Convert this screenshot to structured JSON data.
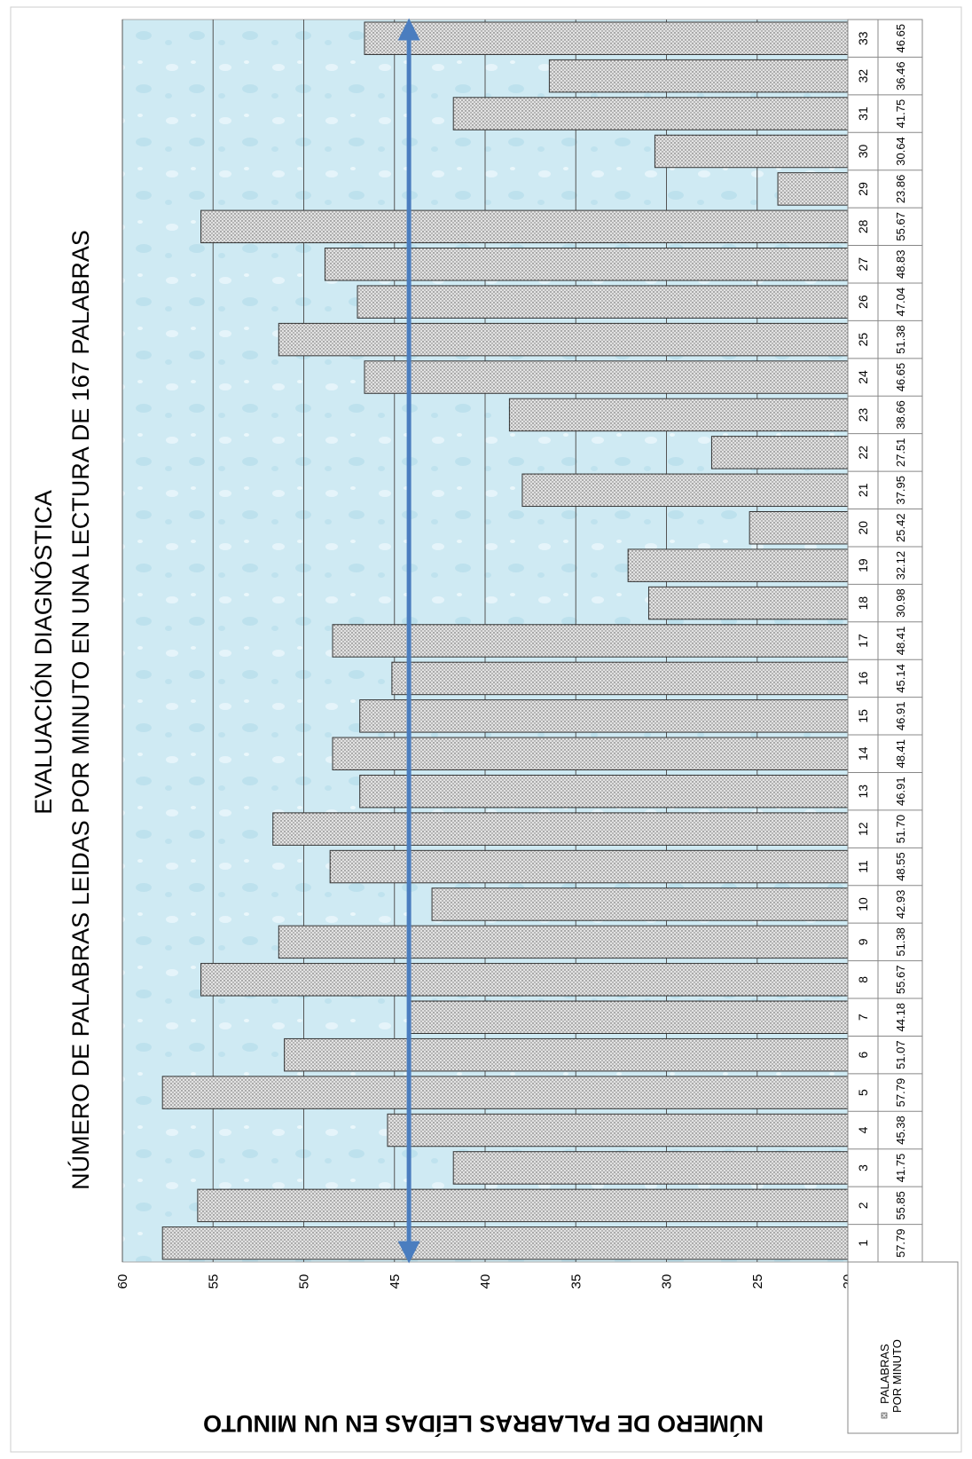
{
  "chart_data": {
    "type": "bar",
    "title": "EVALUACIÓN DIAGNÓSTICA",
    "subtitle": "NÚMERO DE PALABRAS LEIDAS POR MINUTO EN UNA LECTURA DE 167 PALABRAS",
    "ylabel": "NÚMERO DE PALABRAS LEÍDAS EN UN MINUTO",
    "xlabel": "",
    "ylim": [
      20,
      60
    ],
    "yticks": [
      20,
      25,
      30,
      35,
      40,
      45,
      50,
      55,
      60
    ],
    "grid": true,
    "categories": [
      "1",
      "2",
      "3",
      "4",
      "5",
      "6",
      "7",
      "8",
      "9",
      "10",
      "11",
      "12",
      "13",
      "14",
      "15",
      "16",
      "17",
      "18",
      "19",
      "20",
      "21",
      "22",
      "23",
      "24",
      "25",
      "26",
      "27",
      "28",
      "29",
      "30",
      "31",
      "32",
      "33"
    ],
    "series": [
      {
        "name": "PALABRAS POR MINUTO",
        "values": [
          57.79,
          55.85,
          41.75,
          45.38,
          57.79,
          51.07,
          44.18,
          55.67,
          51.38,
          42.93,
          48.55,
          51.7,
          46.91,
          48.41,
          46.91,
          45.14,
          48.41,
          30.98,
          32.12,
          25.42,
          37.95,
          27.51,
          38.66,
          46.65,
          51.38,
          47.04,
          48.83,
          55.67,
          23.86,
          30.64,
          41.75,
          36.46,
          46.65
        ],
        "labels": [
          "57.79",
          "55.85",
          "41.75",
          "45.38",
          "57.79",
          "51.07",
          "44.18",
          "55.67",
          "51.38",
          "42.93",
          "48.55",
          "51.70",
          "46.91",
          "48.41",
          "46.91",
          "45.14",
          "48.41",
          "30.98",
          "32.12",
          "25.42",
          "37.95",
          "27.51",
          "38.66",
          "46.65",
          "51.38",
          "47.04",
          "48.83",
          "55.67",
          "23.86",
          "30.64",
          "41.75",
          "36.46",
          "46.65"
        ]
      }
    ],
    "reference_line": {
      "value": 44.2,
      "style": "double-arrow"
    },
    "data_table": {
      "row_label_line1": "PALABRAS",
      "row_label_line2": "POR MINUTO"
    },
    "orientation": "rotated-90-clockwise",
    "colors": {
      "plot_bg": "#cfeaf3",
      "bar_fill": "#dcdcdc",
      "bar_stroke": "#333333",
      "arrow": "#4a7dbf",
      "grid": "#555555"
    }
  }
}
